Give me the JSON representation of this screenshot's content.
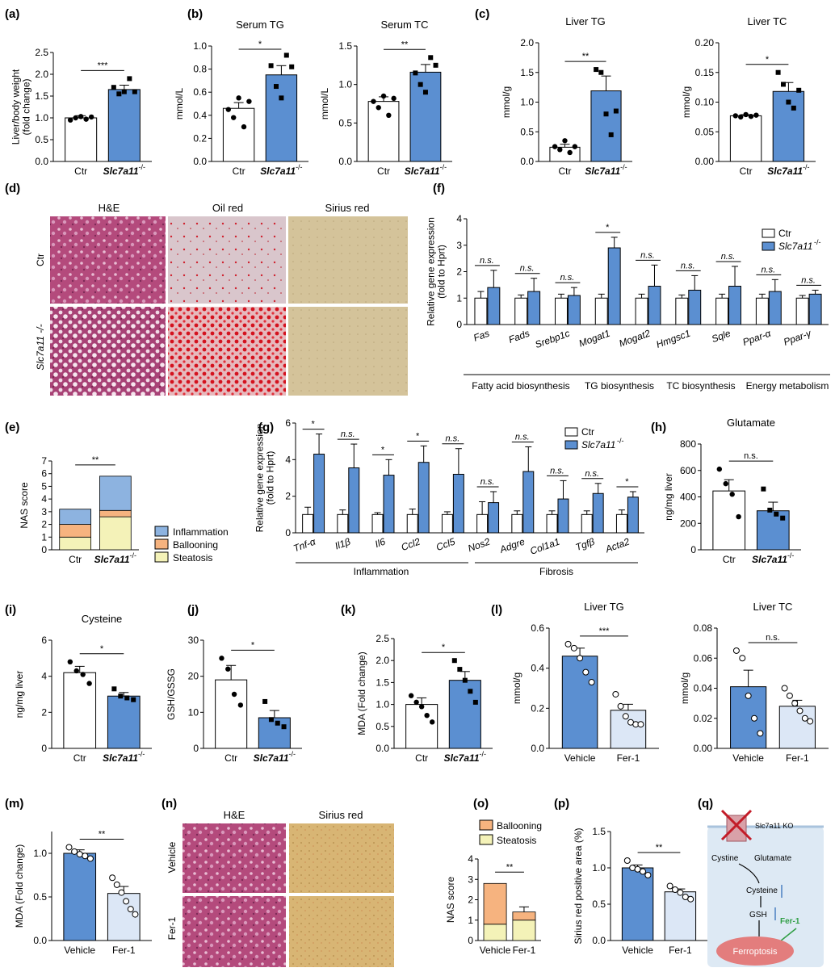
{
  "colors": {
    "ctr": "#ffffff",
    "ko": "#5b8fd1",
    "vehicle": "#5b8fd1",
    "fer1": "#dce7f6",
    "inflammation": "#8db3e0",
    "ballooning": "#f6b37f",
    "steatosis": "#f4f2b8"
  },
  "panel_letters": {
    "a": "(a)",
    "b": "(b)",
    "c": "(c)",
    "d": "(d)",
    "e": "(e)",
    "f": "(f)",
    "g": "(g)",
    "h": "(h)",
    "i": "(i)",
    "j": "(j)",
    "k": "(k)",
    "l": "(l)",
    "m": "(m)",
    "n": "(n)",
    "o": "(o)",
    "p": "(p)",
    "q": "(q)"
  },
  "legend": {
    "ctr": "Ctr",
    "ko_gene": "Slc7a11",
    "ko_sup": "-/-",
    "inflammation": "Inflammation",
    "ballooning": "Ballooning",
    "steatosis": "Steatosis"
  },
  "histology": {
    "d_cols": [
      "H&E",
      "Oil red",
      "Sirius red"
    ],
    "d_rows": [
      "Ctr",
      "Slc7a11 -/-"
    ],
    "n_cols": [
      "H&E",
      "Sirius red"
    ],
    "n_rows": [
      "Vehicle",
      "Fer-1"
    ]
  },
  "groups": {
    "f": [
      "Fatty acid biosynthesis",
      "TG biosynthesis",
      "TC biosynthesis",
      "Energy metabolism"
    ],
    "g": [
      "Inflammation",
      "Fibrosis"
    ]
  },
  "diagram": {
    "label_ko": "Slc7a11 KO",
    "cystine": "Cystine",
    "glutamate": "Glutamate",
    "cysteine": "Cysteine",
    "gsh": "GSH",
    "fer1": "Fer-1",
    "ferroptosis": "Ferroptosis"
  },
  "chart_data": [
    {
      "id": "a",
      "type": "bar",
      "categories": [
        "Ctr",
        "Slc7a11-/-"
      ],
      "values": [
        1.0,
        1.65
      ],
      "errors": [
        0.05,
        0.1
      ],
      "ylabel": "Liver/body weight\n(fold change)",
      "ylim": [
        0,
        2.5
      ],
      "yticks": [
        "0.0",
        "0.5",
        "1.0",
        "1.5",
        "2.0",
        "2.5"
      ],
      "significance": "***",
      "points": [
        [
          0.95,
          1.0,
          1.03,
          0.97,
          1.02
        ],
        [
          1.7,
          1.55,
          1.6,
          1.9,
          1.6
        ]
      ]
    },
    {
      "id": "b1",
      "type": "bar",
      "title": "Serum TG",
      "categories": [
        "Ctr",
        "Slc7a11-/-"
      ],
      "values": [
        0.46,
        0.75
      ],
      "errors": [
        0.05,
        0.08
      ],
      "ylabel": "mmol/L",
      "ylim": [
        0,
        1.0
      ],
      "yticks": [
        "0.0",
        "0.2",
        "0.4",
        "0.6",
        "0.8",
        "1.0"
      ],
      "significance": "*",
      "points": [
        [
          0.45,
          0.38,
          0.55,
          0.3,
          0.52
        ],
        [
          0.83,
          0.65,
          0.55,
          0.92,
          0.82
        ]
      ]
    },
    {
      "id": "b2",
      "type": "bar",
      "title": "Serum TC",
      "categories": [
        "Ctr",
        "Slc7a11-/-"
      ],
      "values": [
        0.78,
        1.16
      ],
      "errors": [
        0.06,
        0.1
      ],
      "ylabel": "mmol/L",
      "ylim": [
        0,
        1.5
      ],
      "yticks": [
        "0.0",
        "0.5",
        "1.0",
        "1.5"
      ],
      "significance": "**",
      "points": [
        [
          0.78,
          0.7,
          0.85,
          0.6,
          0.82
        ],
        [
          1.15,
          1.0,
          0.9,
          1.35,
          1.25
        ]
      ]
    },
    {
      "id": "c1",
      "type": "bar",
      "title": "Liver TG",
      "categories": [
        "Ctr",
        "Slc7a11-/-"
      ],
      "values": [
        0.24,
        1.19
      ],
      "errors": [
        0.05,
        0.25
      ],
      "ylabel": "mmol/g",
      "ylim": [
        0,
        2.0
      ],
      "yticks": [
        "0.0",
        "0.5",
        "1.0",
        "1.5",
        "2.0"
      ],
      "significance": "**",
      "points": [
        [
          0.25,
          0.2,
          0.35,
          0.15,
          0.25
        ],
        [
          1.55,
          1.5,
          0.8,
          0.45,
          0.85
        ]
      ]
    },
    {
      "id": "c2",
      "type": "bar",
      "title": "Liver TC",
      "categories": [
        "Ctr",
        "Slc7a11-/-"
      ],
      "values": [
        0.077,
        0.118
      ],
      "errors": [
        0.002,
        0.015
      ],
      "ylabel": "mmol/g",
      "ylim": [
        0,
        0.2
      ],
      "yticks": [
        "0.00",
        "0.05",
        "0.10",
        "0.15",
        "0.20"
      ],
      "significance": "*",
      "points": [
        [
          0.077,
          0.075,
          0.079,
          0.076,
          0.078
        ],
        [
          0.15,
          0.13,
          0.1,
          0.09,
          0.12
        ]
      ]
    },
    {
      "id": "e",
      "type": "stacked-bar",
      "categories": [
        "Ctr",
        "Slc7a11-/-"
      ],
      "series": [
        {
          "name": "Steatosis",
          "values": [
            1.0,
            2.6
          ]
        },
        {
          "name": "Ballooning",
          "values": [
            1.0,
            0.5
          ]
        },
        {
          "name": "Inflammation",
          "values": [
            1.2,
            2.7
          ]
        }
      ],
      "errors": [
        [
          0.3,
          0.2
        ],
        [
          0.4,
          0.25
        ]
      ],
      "ylabel": "NAS score",
      "ylim": [
        0,
        7
      ],
      "yticks": [
        "0",
        "1",
        "2",
        "3",
        "4",
        "5",
        "6",
        "7"
      ],
      "significance": "**"
    },
    {
      "id": "f",
      "type": "grouped-bar",
      "categories": [
        "Fas",
        "Fads",
        "Srebp1c",
        "Mogat1",
        "Mogat2",
        "Hmgsc1",
        "Sqle",
        "Ppar-α",
        "Ppar-γ"
      ],
      "series": [
        {
          "name": "Ctr",
          "values": [
            1,
            1,
            1,
            1,
            1,
            1,
            1,
            1,
            1
          ]
        },
        {
          "name": "Slc7a11-/-",
          "values": [
            1.4,
            1.25,
            1.1,
            2.9,
            1.45,
            1.3,
            1.45,
            1.25,
            1.15
          ]
        }
      ],
      "errors": [
        [
          0.25,
          0.12,
          0.15,
          0.15,
          0.15,
          0.12,
          0.15,
          0.15,
          0.1
        ],
        [
          0.65,
          0.5,
          0.3,
          0.4,
          0.8,
          0.55,
          0.75,
          0.45,
          0.15
        ]
      ],
      "ylabel": "Relative gene expression\n(fold to Hprt)",
      "ylim": [
        0,
        4
      ],
      "yticks": [
        "0",
        "1",
        "2",
        "3",
        "4"
      ],
      "significance": [
        "n.s.",
        "n.s.",
        "n.s.",
        "*",
        "n.s.",
        "n.s.",
        "n.s.",
        "n.s.",
        "n.s."
      ]
    },
    {
      "id": "g",
      "type": "grouped-bar",
      "categories": [
        "Tnf-α",
        "Il1β",
        "Il6",
        "Ccl2",
        "Ccl5",
        "Nos2",
        "Adgre",
        "Col1a1",
        "Tgfβ",
        "Acta2"
      ],
      "series": [
        {
          "name": "Ctr",
          "values": [
            1,
            1,
            1,
            1,
            1,
            1,
            1,
            1,
            1,
            1
          ]
        },
        {
          "name": "Slc7a11-/-",
          "values": [
            4.3,
            3.55,
            3.15,
            3.85,
            3.2,
            1.65,
            3.35,
            1.85,
            2.15,
            1.95
          ]
        }
      ],
      "errors": [
        [
          0.4,
          0.25,
          0.1,
          0.3,
          0.15,
          0.7,
          0.2,
          0.2,
          0.2,
          0.25
        ],
        [
          1.1,
          1.3,
          0.85,
          0.9,
          1.4,
          0.6,
          1.35,
          1.0,
          0.55,
          0.3
        ]
      ],
      "ylabel": "Relative gene expression\n(fold to Hprt)",
      "ylim": [
        0,
        6
      ],
      "yticks": [
        "0",
        "2",
        "4",
        "6"
      ],
      "significance": [
        "*",
        "n.s.",
        "*",
        "*",
        "n.s.",
        "n.s.",
        "n.s.",
        "n.s.",
        "n.s.",
        "*"
      ]
    },
    {
      "id": "h",
      "type": "bar",
      "title": "Glutamate",
      "categories": [
        "Ctr",
        "Slc7a11-/-"
      ],
      "values": [
        445,
        295
      ],
      "errors": [
        85,
        65
      ],
      "ylabel": "ng/mg liver",
      "ylim": [
        0,
        800
      ],
      "yticks": [
        "0",
        "200",
        "400",
        "600",
        "800"
      ],
      "significance": "n.s.",
      "points": [
        [
          610,
          500,
          420,
          250
        ],
        [
          460,
          300,
          270,
          240
        ]
      ]
    },
    {
      "id": "i",
      "type": "bar",
      "title": "Cysteine",
      "categories": [
        "Ctr",
        "Slc7a11-/-"
      ],
      "values": [
        4.2,
        2.9
      ],
      "errors": [
        0.35,
        0.2
      ],
      "ylabel": "ng/mg liver",
      "ylim": [
        0,
        6
      ],
      "yticks": [
        "0",
        "2",
        "4",
        "6"
      ],
      "significance": "*",
      "points": [
        [
          4.8,
          4.3,
          4.1,
          3.6
        ],
        [
          3.3,
          2.9,
          2.8,
          2.7
        ]
      ]
    },
    {
      "id": "j",
      "type": "bar",
      "categories": [
        "Ctr",
        "Slc7a11-/-"
      ],
      "values": [
        19,
        8.5
      ],
      "errors": [
        4,
        2
      ],
      "ylabel": "GSH/GSSG",
      "ylim": [
        0,
        30
      ],
      "yticks": [
        "0",
        "10",
        "20",
        "30"
      ],
      "significance": "*",
      "points": [
        [
          25,
          22,
          15,
          12
        ],
        [
          13,
          8,
          7,
          6
        ]
      ]
    },
    {
      "id": "k",
      "type": "bar",
      "categories": [
        "Ctr",
        "Slc7a11-/-"
      ],
      "values": [
        1.0,
        1.55
      ],
      "errors": [
        0.15,
        0.2
      ],
      "ylabel": "MDA (Fold change)",
      "ylim": [
        0,
        2.5
      ],
      "yticks": [
        "0.0",
        "0.5",
        "1.0",
        "1.5",
        "2.0",
        "2.5"
      ],
      "significance": "*",
      "points": [
        [
          1.2,
          1.05,
          0.95,
          0.75,
          0.6
        ],
        [
          2.0,
          1.8,
          1.55,
          1.3,
          1.05
        ]
      ]
    },
    {
      "id": "l1",
      "type": "bar",
      "title": "Liver  TG",
      "categories": [
        "Vehicle",
        "Fer-1"
      ],
      "values": [
        0.46,
        0.19
      ],
      "errors": [
        0.04,
        0.03
      ],
      "ylabel": "mmol/g",
      "ylim": [
        0,
        0.6
      ],
      "yticks": [
        "0.0",
        "0.2",
        "0.4",
        "0.6"
      ],
      "significance": "***",
      "points": [
        [
          0.52,
          0.5,
          0.45,
          0.38,
          0.33
        ],
        [
          0.27,
          0.21,
          0.16,
          0.13,
          0.12,
          0.12
        ]
      ]
    },
    {
      "id": "l2",
      "type": "bar",
      "title": "Liver TC",
      "categories": [
        "Vehicle",
        "Fer-1"
      ],
      "values": [
        0.041,
        0.028
      ],
      "errors": [
        0.011,
        0.004
      ],
      "ylabel": "mmol/g",
      "ylim": [
        0,
        0.08
      ],
      "yticks": [
        "0.00",
        "0.02",
        "0.04",
        "0.06",
        "0.08"
      ],
      "significance": "n.s.",
      "points": [
        [
          0.065,
          0.06,
          0.035,
          0.02,
          0.01
        ],
        [
          0.04,
          0.035,
          0.03,
          0.025,
          0.02,
          0.018
        ]
      ]
    },
    {
      "id": "m",
      "type": "bar",
      "categories": [
        "Vehicle",
        "Fer-1"
      ],
      "values": [
        1.0,
        0.54
      ],
      "errors": [
        0.04,
        0.08
      ],
      "ylabel": "MDA (Fold change)",
      "ylim": [
        0,
        1.0
      ],
      "yticks": [
        "0.0",
        "0.5",
        "1.0"
      ],
      "ylim_draw": [
        0,
        1.25
      ],
      "significance": "**",
      "points": [
        [
          1.07,
          1.02,
          0.99,
          0.97,
          0.94
        ],
        [
          0.72,
          0.64,
          0.55,
          0.45,
          0.36,
          0.3
        ]
      ]
    },
    {
      "id": "o",
      "type": "stacked-bar",
      "categories": [
        "Vehicle",
        "Fer-1"
      ],
      "series": [
        {
          "name": "Steatosis",
          "values": [
            0.8,
            1.0
          ]
        },
        {
          "name": "Ballooning",
          "values": [
            2.0,
            0.4
          ]
        }
      ],
      "errors": [
        [
          0.2,
          0
        ],
        [
          0,
          0.25
        ]
      ],
      "ylabel": "NAS score",
      "ylim": [
        0,
        4
      ],
      "yticks": [
        "0",
        "1",
        "2",
        "3",
        "4"
      ],
      "significance": "**"
    },
    {
      "id": "p",
      "type": "bar",
      "categories": [
        "Vehicle",
        "Fer-1"
      ],
      "values": [
        1.0,
        0.67
      ],
      "errors": [
        0.04,
        0.04
      ],
      "ylabel": "Sirius red positive area (%)",
      "ylim": [
        0,
        1.5
      ],
      "yticks": [
        "0.0",
        "0.5",
        "1.0",
        "1.5"
      ],
      "significance": "**",
      "points": [
        [
          1.1,
          1.0,
          0.98,
          0.95,
          0.9
        ],
        [
          0.75,
          0.7,
          0.66,
          0.6,
          0.57
        ]
      ]
    }
  ]
}
